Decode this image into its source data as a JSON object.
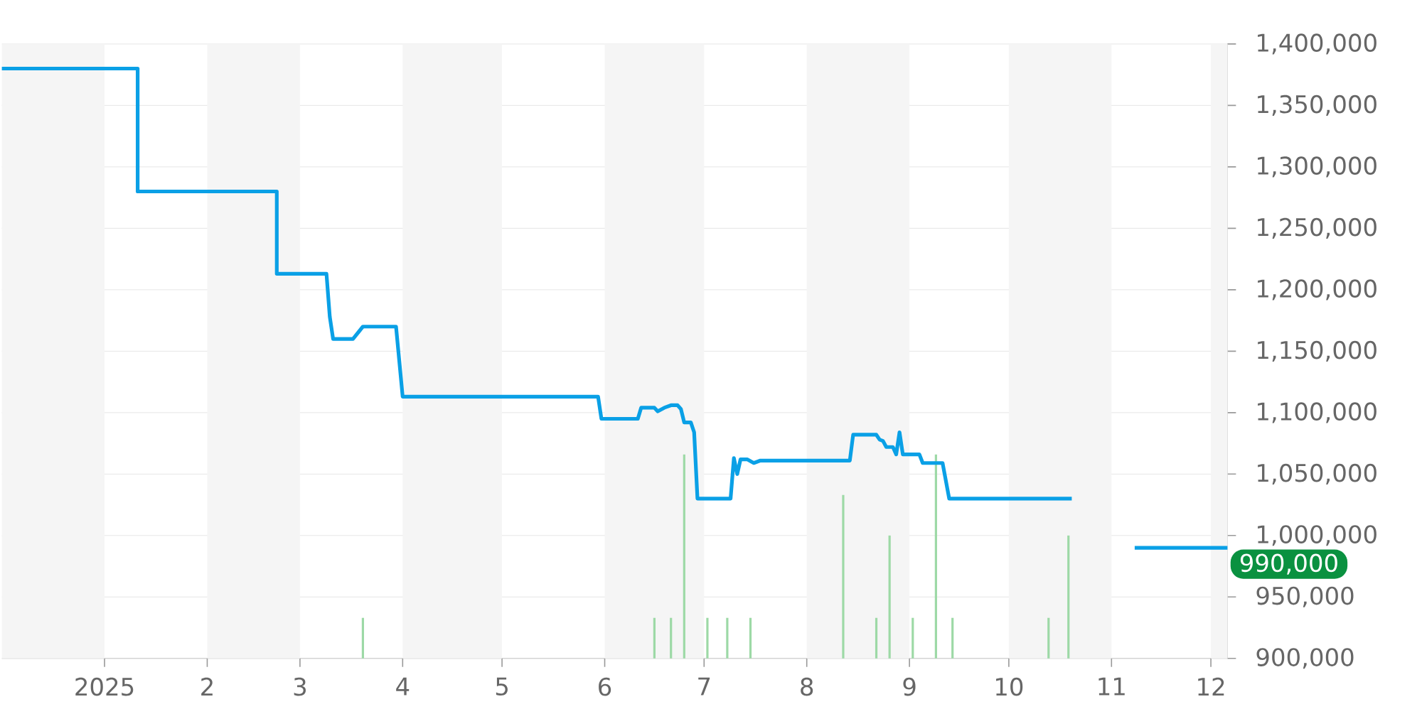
{
  "chart_data": {
    "type": "line",
    "xlim": [
      "2024-12-01",
      "2025-12-06"
    ],
    "ylim": [
      900000,
      1400000
    ],
    "xticks": [
      {
        "value": "2025-01-01",
        "label": "2025"
      },
      {
        "value": "2025-02-01",
        "label": "2"
      },
      {
        "value": "2025-03-01",
        "label": "3"
      },
      {
        "value": "2025-04-01",
        "label": "4"
      },
      {
        "value": "2025-05-01",
        "label": "5"
      },
      {
        "value": "2025-06-01",
        "label": "6"
      },
      {
        "value": "2025-07-01",
        "label": "7"
      },
      {
        "value": "2025-08-01",
        "label": "8"
      },
      {
        "value": "2025-09-01",
        "label": "9"
      },
      {
        "value": "2025-10-01",
        "label": "10"
      },
      {
        "value": "2025-11-01",
        "label": "11"
      },
      {
        "value": "2025-12-01",
        "label": "12"
      }
    ],
    "yticks": [
      {
        "value": 900000,
        "label": "900,000"
      },
      {
        "value": 950000,
        "label": "950,000"
      },
      {
        "value": 1000000,
        "label": "1,000,000"
      },
      {
        "value": 1050000,
        "label": "1,050,000"
      },
      {
        "value": 1100000,
        "label": "1,100,000"
      },
      {
        "value": 1150000,
        "label": "1,150,000"
      },
      {
        "value": 1200000,
        "label": "1,200,000"
      },
      {
        "value": 1250000,
        "label": "1,250,000"
      },
      {
        "value": 1300000,
        "label": "1,300,000"
      },
      {
        "value": 1350000,
        "label": "1,350,000"
      },
      {
        "value": 1400000,
        "label": "1,400,000"
      }
    ],
    "grid": "y",
    "bands": [
      {
        "axis": "x",
        "from": "2024-12-01",
        "to": "2025-01-01",
        "color": "#f5f5f5"
      },
      {
        "axis": "x",
        "from": "2025-02-01",
        "to": "2025-03-01",
        "color": "#f5f5f5"
      },
      {
        "axis": "x",
        "from": "2025-04-01",
        "to": "2025-05-01",
        "color": "#f5f5f5"
      },
      {
        "axis": "x",
        "from": "2025-06-01",
        "to": "2025-07-01",
        "color": "#f5f5f5"
      },
      {
        "axis": "x",
        "from": "2025-08-01",
        "to": "2025-09-01",
        "color": "#f5f5f5"
      },
      {
        "axis": "x",
        "from": "2025-10-01",
        "to": "2025-11-01",
        "color": "#f5f5f5"
      },
      {
        "axis": "x",
        "from": "2025-12-01",
        "to": "2025-12-06",
        "color": "#f5f5f5"
      }
    ],
    "series": [
      {
        "type": "bar",
        "color": "#9dd9a6",
        "x": [
          "2025-03-20",
          "2025-06-16",
          "2025-06-21",
          "2025-06-25",
          "2025-07-02",
          "2025-07-08",
          "2025-07-15",
          "2025-08-12",
          "2025-08-22",
          "2025-08-26",
          "2025-09-02",
          "2025-09-09",
          "2025-09-14",
          "2025-10-13",
          "2025-10-19"
        ],
        "values": [
          933000,
          933000,
          933000,
          1066000,
          933000,
          933000,
          933000,
          1033000,
          933000,
          1000000,
          933000,
          1066000,
          933000,
          933000,
          1000000
        ]
      },
      {
        "color": "#0aa0e6",
        "x": [
          "2024-12-01",
          "2025-01-11",
          "2025-01-11",
          "2025-02-22",
          "2025-02-22",
          "2025-03-09",
          "2025-03-10",
          "2025-03-11",
          "2025-03-17",
          "2025-03-20",
          "2025-03-30",
          "2025-04-01",
          "2025-05-30",
          "2025-05-31",
          "2025-06-11",
          "2025-06-12",
          "2025-06-16",
          "2025-06-17",
          "2025-06-19",
          "2025-06-21",
          "2025-06-23",
          "2025-06-24",
          "2025-06-25",
          "2025-06-27",
          "2025-06-28",
          "2025-06-29",
          "2025-07-09",
          "2025-07-10",
          "2025-07-11",
          "2025-07-12",
          "2025-07-14",
          "2025-07-16",
          "2025-07-18",
          "2025-08-14",
          "2025-08-15",
          "2025-08-22",
          "2025-08-23",
          "2025-08-24",
          "2025-08-25",
          "2025-08-27",
          "2025-08-28",
          "2025-08-29",
          "2025-08-30",
          "2025-09-04",
          "2025-09-05",
          "2025-09-11",
          "2025-09-13",
          "2025-10-20",
          "2025-10-30",
          "2025-11-08",
          "2025-12-06"
        ],
        "values": [
          1380000,
          1380000,
          1280000,
          1280000,
          1213000,
          1213000,
          1178000,
          1160000,
          1160000,
          1170000,
          1170000,
          1113000,
          1113000,
          1095000,
          1095000,
          1104000,
          1104000,
          1101000,
          1104000,
          1106000,
          1106000,
          1103000,
          1092000,
          1092000,
          1084000,
          1030000,
          1030000,
          1063000,
          1050000,
          1062000,
          1062000,
          1059000,
          1061000,
          1061000,
          1082000,
          1082000,
          1078000,
          1077000,
          1072000,
          1072000,
          1066000,
          1084000,
          1066000,
          1066000,
          1059000,
          1059000,
          1030000,
          1030000,
          null,
          990000,
          990000
        ]
      }
    ],
    "annotations": [
      {
        "text": "990,000",
        "x": "2025-12-06",
        "y": 990000
      }
    ]
  }
}
